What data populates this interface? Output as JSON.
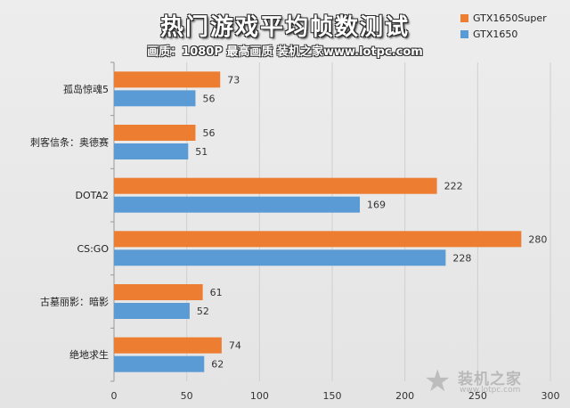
{
  "colors": {
    "super": "#ed7d31",
    "base": "#5b9bd5",
    "grid": "#cfcfcf",
    "axis": "#999999"
  },
  "legend": {
    "super": "GTX1650Super",
    "base": "GTX1650"
  },
  "watermark": {
    "icon": "star-icon",
    "text": "装机之家",
    "url": "www.lotpc.com"
  },
  "chart_data": {
    "type": "bar",
    "orientation": "horizontal",
    "title": "热门游戏平均帧数测试",
    "subtitle": "画质：1080P 最高画质 装机之家www.lotpc.com",
    "categories": [
      "孤岛惊魂5",
      "刺客信条：奥德赛",
      "DOTA2",
      "CS:GO",
      "古墓丽影：暗影",
      "绝地求生"
    ],
    "series": [
      {
        "name": "GTX1650Super",
        "values": [
          73,
          56,
          222,
          280,
          61,
          74
        ]
      },
      {
        "name": "GTX1650",
        "values": [
          56,
          51,
          169,
          228,
          52,
          62
        ]
      }
    ],
    "xlim": [
      0,
      300
    ],
    "xticks": [
      "0",
      "50",
      "100",
      "150",
      "200",
      "250",
      "300"
    ],
    "grid": true,
    "legend_position": "top-right"
  }
}
